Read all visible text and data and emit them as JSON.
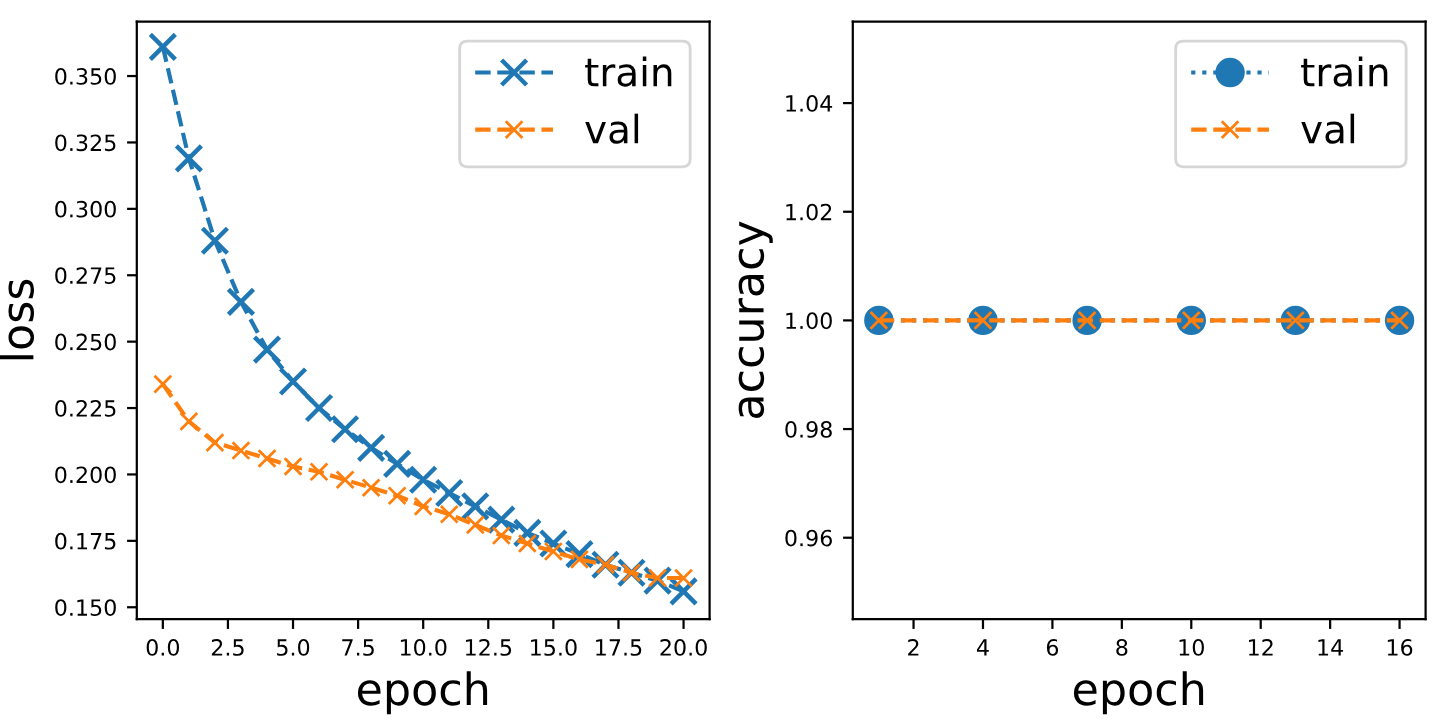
{
  "chart_data": [
    {
      "type": "line",
      "xlabel": "epoch",
      "ylabel": "loss",
      "x": [
        0,
        1,
        2,
        3,
        4,
        5,
        6,
        7,
        8,
        9,
        10,
        11,
        12,
        13,
        14,
        15,
        16,
        17,
        18,
        19,
        20
      ],
      "series": [
        {
          "name": "train",
          "color": "#1f77b4",
          "marker": "cross",
          "line_style": "dashed",
          "values": [
            0.361,
            0.319,
            0.288,
            0.265,
            0.247,
            0.235,
            0.225,
            0.217,
            0.21,
            0.204,
            0.198,
            0.193,
            0.188,
            0.183,
            0.178,
            0.174,
            0.17,
            0.166,
            0.163,
            0.16,
            0.156
          ]
        },
        {
          "name": "val",
          "color": "#ff7f0e",
          "marker": "cross",
          "line_style": "dashed",
          "values": [
            0.234,
            0.22,
            0.212,
            0.209,
            0.206,
            0.203,
            0.201,
            0.198,
            0.195,
            0.192,
            0.188,
            0.185,
            0.181,
            0.177,
            0.174,
            0.171,
            0.168,
            0.166,
            0.163,
            0.161,
            0.161
          ]
        }
      ],
      "xlim": [
        -1.0,
        21.0
      ],
      "xticks": [
        {
          "value": 0,
          "label": "0.0"
        },
        {
          "value": 2.5,
          "label": "2.5"
        },
        {
          "value": 5,
          "label": "5.0"
        },
        {
          "value": 7.5,
          "label": "7.5"
        },
        {
          "value": 10,
          "label": "10.0"
        },
        {
          "value": 12.5,
          "label": "12.5"
        },
        {
          "value": 15,
          "label": "15.0"
        },
        {
          "value": 17.5,
          "label": "17.5"
        },
        {
          "value": 20,
          "label": "20.0"
        }
      ],
      "ylim": [
        0.1455,
        0.3705
      ],
      "yticks": [
        {
          "value": 0.15,
          "label": "0.150"
        },
        {
          "value": 0.175,
          "label": "0.175"
        },
        {
          "value": 0.2,
          "label": "0.200"
        },
        {
          "value": 0.225,
          "label": "0.225"
        },
        {
          "value": 0.25,
          "label": "0.250"
        },
        {
          "value": 0.275,
          "label": "0.275"
        },
        {
          "value": 0.3,
          "label": "0.300"
        },
        {
          "value": 0.325,
          "label": "0.325"
        },
        {
          "value": 0.35,
          "label": "0.350"
        }
      ],
      "grid": false,
      "legend": "top right"
    },
    {
      "type": "line",
      "xlabel": "epoch",
      "ylabel": "accuracy",
      "x": [
        1,
        4,
        7,
        10,
        13,
        16
      ],
      "series": [
        {
          "name": "train",
          "color": "#1f77b4",
          "marker": "circle",
          "line_style": "dotted",
          "values": [
            1.0,
            1.0,
            1.0,
            1.0,
            1.0,
            1.0
          ]
        },
        {
          "name": "val",
          "color": "#ff7f0e",
          "marker": "cross",
          "line_style": "dashed",
          "values": [
            1.0,
            1.0,
            1.0,
            1.0,
            1.0,
            1.0
          ]
        }
      ],
      "xlim": [
        0.25,
        16.75
      ],
      "xticks": [
        2,
        4,
        6,
        8,
        10,
        12,
        14,
        16
      ],
      "ylim": [
        0.945,
        1.055
      ],
      "yticks": [
        {
          "value": 0.96,
          "label": "0.96"
        },
        {
          "value": 0.98,
          "label": "0.98"
        },
        {
          "value": 1.0,
          "label": "1.00"
        },
        {
          "value": 1.02,
          "label": "1.02"
        },
        {
          "value": 1.04,
          "label": "1.04"
        }
      ],
      "grid": false,
      "legend": "top right"
    }
  ]
}
